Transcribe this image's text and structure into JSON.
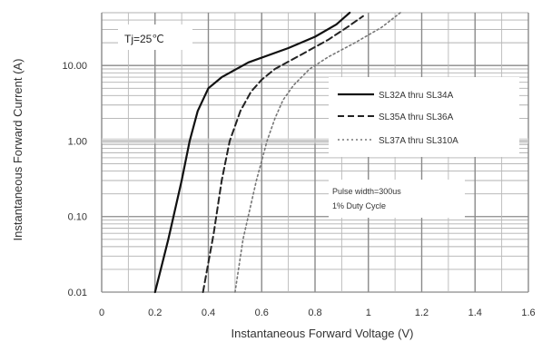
{
  "chart_data": {
    "type": "line",
    "xlabel": "Instantaneous Forward Voltage (V)",
    "ylabel": "Instantaneous Forward Current (A)",
    "xlim": [
      0,
      1.6
    ],
    "ylim": [
      0.01,
      50
    ],
    "y_scale": "log",
    "grid": true,
    "x_ticks": [
      "0",
      "0.2",
      "0.4",
      "0.6",
      "0.8",
      "1",
      "1.2",
      "1.4",
      "1.6"
    ],
    "y_ticks": [
      "0.01",
      "0.10",
      "1.00",
      "10.00"
    ],
    "legend_position": "right",
    "annotations": {
      "temperature": "Tj=25℃",
      "pulse_line1": "Pulse width=300us",
      "pulse_line2": "1% Duty Cycle"
    },
    "series": [
      {
        "name": "SL32A thru SL34A",
        "style": "solid",
        "color": "#111111",
        "x": [
          0.2,
          0.25,
          0.3,
          0.33,
          0.36,
          0.4,
          0.45,
          0.55,
          0.7,
          0.8,
          0.88,
          0.93
        ],
        "y": [
          0.01,
          0.05,
          0.3,
          1.0,
          2.5,
          5,
          7,
          11,
          17,
          24,
          35,
          50
        ]
      },
      {
        "name": "SL35A thru SL36A",
        "style": "dashed",
        "color": "#222222",
        "x": [
          0.38,
          0.42,
          0.45,
          0.48,
          0.52,
          0.56,
          0.6,
          0.65,
          0.75,
          0.85,
          0.92,
          0.98
        ],
        "y": [
          0.01,
          0.06,
          0.3,
          1.0,
          2.5,
          4.5,
          6.5,
          9,
          14,
          22,
          32,
          45
        ]
      },
      {
        "name": "SL37A thru SL310A",
        "style": "dotted",
        "color": "#777777",
        "x": [
          0.5,
          0.53,
          0.58,
          0.62,
          0.65,
          0.68,
          0.72,
          0.78,
          0.85,
          0.95,
          1.05,
          1.12
        ],
        "y": [
          0.01,
          0.05,
          0.3,
          1.0,
          2.0,
          3.5,
          5.5,
          9,
          13,
          20,
          32,
          50
        ]
      }
    ]
  }
}
